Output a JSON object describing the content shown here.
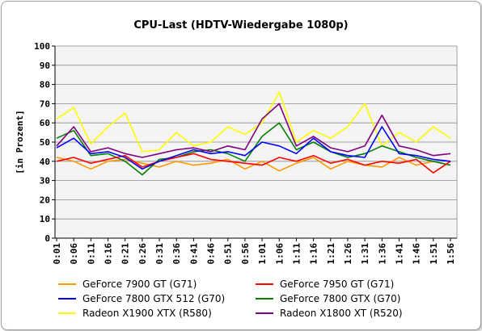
{
  "chart_data": {
    "type": "line",
    "title": "CPU-Last (HDTV-Wiedergabe 1080p)",
    "xlabel": "",
    "ylabel": "[in Prozent]",
    "ylim": [
      0,
      100
    ],
    "yticks": [
      0,
      10,
      20,
      30,
      40,
      50,
      60,
      70,
      80,
      90,
      100
    ],
    "grid": true,
    "plot_background": "#f4f4f4",
    "legend_position": "bottom",
    "categories": [
      "0:01",
      "0:06",
      "0:11",
      "0:16",
      "0:21",
      "0:26",
      "0:31",
      "0:36",
      "0:41",
      "0:46",
      "0:51",
      "0:56",
      "1:01",
      "1:06",
      "1:11",
      "1:16",
      "1:21",
      "1:26",
      "1:31",
      "1:36",
      "1:41",
      "1:46",
      "1:51",
      "1:56"
    ],
    "category_ticks": [
      "0:01",
      "0:06",
      "0:11",
      "0:16",
      "0:21",
      "0:26",
      "0:31",
      "0:36",
      "0:41",
      "0:46",
      "0:51",
      "0:56",
      "1:01",
      "1:06",
      "1:11",
      "1:16",
      "1:21",
      "1:26",
      "1:31",
      "1:36",
      "1:41",
      "1:46",
      "1:51",
      "1:56"
    ],
    "series": [
      {
        "name": "GeForce 7900 GT (G71)",
        "color": "#ff9900",
        "values": [
          42,
          40,
          36,
          40,
          41,
          39,
          37,
          40,
          38,
          39,
          41,
          36,
          40,
          35,
          39,
          42,
          36,
          40,
          38,
          37,
          42,
          38,
          40,
          38
        ]
      },
      {
        "name": "GeForce 7950 GT (G71)",
        "color": "#ff0000",
        "values": [
          40,
          42,
          39,
          41,
          43,
          37,
          40,
          42,
          44,
          41,
          40,
          39,
          38,
          42,
          40,
          43,
          39,
          41,
          38,
          40,
          39,
          41,
          34,
          40
        ]
      },
      {
        "name": "GeForce 7800 GTX 512 (G70)",
        "color": "#0000ff",
        "values": [
          47,
          52,
          44,
          45,
          42,
          36,
          40,
          43,
          46,
          44,
          45,
          43,
          50,
          48,
          44,
          52,
          45,
          43,
          42,
          58,
          44,
          43,
          41,
          40
        ]
      },
      {
        "name": "GeForce 7800 GTX (G70)",
        "color": "#008000",
        "values": [
          52,
          56,
          43,
          44,
          40,
          33,
          41,
          42,
          45,
          46,
          44,
          40,
          53,
          60,
          46,
          50,
          45,
          42,
          44,
          48,
          45,
          42,
          40,
          38
        ]
      },
      {
        "name": "Radeon X1900 XTX (R580)",
        "color": "#ffff00",
        "values": [
          62,
          68,
          49,
          58,
          65,
          45,
          46,
          55,
          48,
          50,
          58,
          54,
          60,
          76,
          50,
          56,
          52,
          58,
          70,
          48,
          55,
          50,
          58,
          52
        ]
      },
      {
        "name": "Radeon X1800 XT (R520)",
        "color": "#800080",
        "values": [
          48,
          58,
          45,
          47,
          44,
          42,
          44,
          46,
          47,
          45,
          48,
          46,
          62,
          70,
          48,
          53,
          47,
          45,
          48,
          64,
          48,
          46,
          43,
          44
        ]
      }
    ]
  }
}
